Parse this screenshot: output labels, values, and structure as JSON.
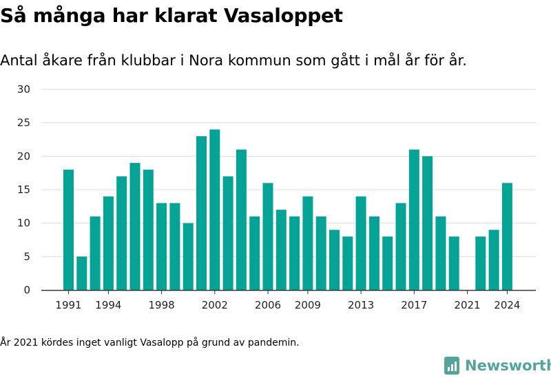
{
  "title": "Så många har klarat Vasaloppet",
  "subtitle": "Antal åkare från klubbar i Nora kommun som gått i mål år för år.",
  "footnote": "År 2021 kördes inget vanligt Vasalopp på grund av pandemin.",
  "brand": {
    "name": "Newsworthy",
    "icon": "bar-chart-logo-icon"
  },
  "colors": {
    "bar": "#05a396",
    "grid": "#dddddd",
    "axis": "#333333"
  },
  "chart_data": {
    "type": "bar",
    "title": "Så många har klarat Vasaloppet",
    "subtitle": "Antal åkare från klubbar i Nora kommun som gått i mål år för år.",
    "xlabel": "",
    "ylabel": "",
    "ylim": [
      0,
      30
    ],
    "yticks": [
      0,
      5,
      10,
      15,
      20,
      25,
      30
    ],
    "xticks": [
      1991,
      1994,
      1998,
      2002,
      2006,
      2009,
      2013,
      2017,
      2021,
      2024
    ],
    "grid": true,
    "legend": "none",
    "categories": [
      1991,
      1992,
      1993,
      1994,
      1995,
      1996,
      1997,
      1998,
      1999,
      2000,
      2001,
      2002,
      2003,
      2004,
      2005,
      2006,
      2007,
      2008,
      2009,
      2010,
      2011,
      2012,
      2013,
      2014,
      2015,
      2016,
      2017,
      2018,
      2019,
      2020,
      2021,
      2022,
      2023,
      2024
    ],
    "values": [
      18,
      5,
      11,
      14,
      17,
      19,
      18,
      13,
      13,
      10,
      23,
      24,
      17,
      21,
      11,
      16,
      12,
      11,
      14,
      11,
      9,
      8,
      14,
      11,
      8,
      13,
      21,
      20,
      11,
      8,
      null,
      8,
      9,
      16
    ]
  }
}
